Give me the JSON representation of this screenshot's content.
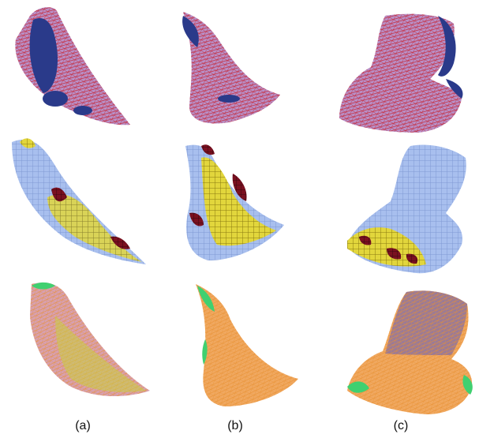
{
  "figure": {
    "columns": [
      {
        "label": "(a)"
      },
      {
        "label": "(b)"
      },
      {
        "label": "(c)"
      }
    ],
    "rows": [
      {
        "style": "overlay",
        "mesh_color": "#c8202a",
        "surface_color": "#b890c8",
        "shadow_color": "#2a3a8a"
      },
      {
        "style": "voxels",
        "voxel_color": "#9db4e6",
        "highlight_color": "#e0d840",
        "dark_color": "#7a1020"
      },
      {
        "style": "wireframe",
        "mesh_color": "#f0a040",
        "surface_color": "#d8a0b0",
        "accent_color": "#40d070"
      }
    ]
  }
}
